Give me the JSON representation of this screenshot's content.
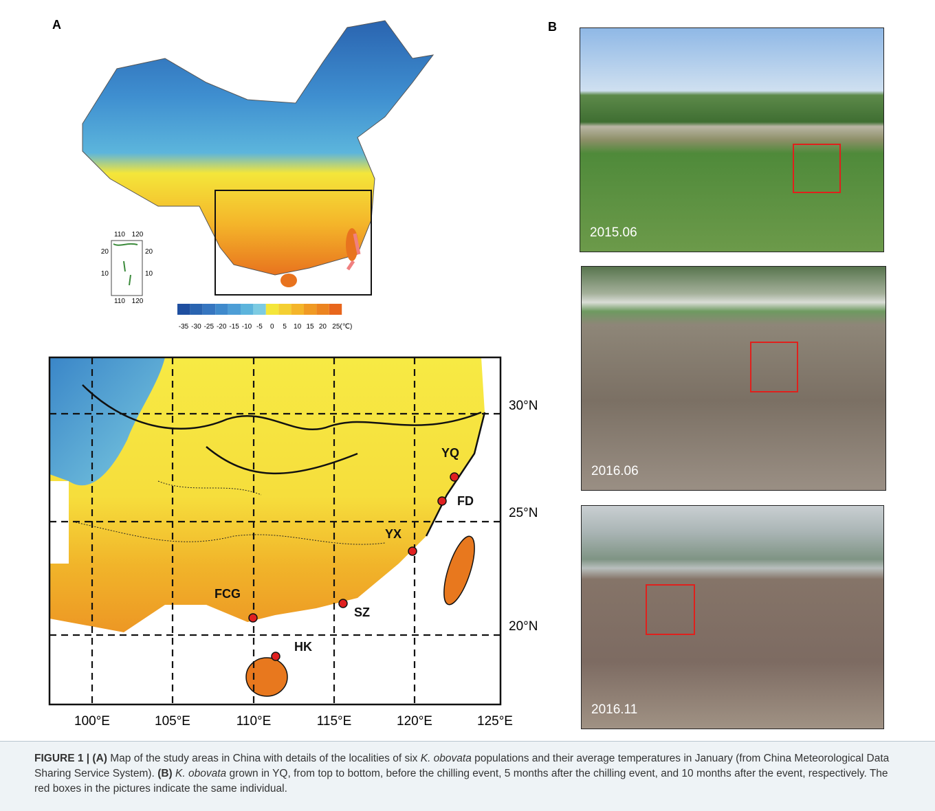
{
  "panel_a": {
    "label": "A",
    "inset": {
      "top_ticks": [
        "110",
        "120"
      ],
      "left_ticks": [
        "20",
        "10"
      ],
      "right_ticks": [
        "20",
        "10"
      ],
      "bottom_ticks": [
        "110",
        "120"
      ]
    },
    "colorbar_labels": [
      "-35",
      "-30",
      "-25",
      "-20",
      "-15",
      "-10",
      "-5",
      "0",
      "5",
      "10",
      "15",
      "20",
      "25(℃)"
    ],
    "map": {
      "lat_labels": [
        "30°N",
        "25°N",
        "20°N"
      ],
      "lon_labels": [
        "100°E",
        "105°E",
        "110°E",
        "115°E",
        "120°E",
        "125°E"
      ],
      "sites": [
        "YQ",
        "FD",
        "YX",
        "SZ",
        "FCG",
        "HK"
      ]
    }
  },
  "panel_b": {
    "label": "B",
    "photo_dates": [
      "2015.06",
      "2016.06",
      "2016.11"
    ]
  },
  "caption": {
    "segments": [
      "FIGURE 1 | (A)",
      "Map of the study areas in China with details of the localities of six",
      "K. obovata",
      "populations and their average temperatures in January (from China Meteorological Data Sharing Service System).",
      "(B)",
      "K. obovata",
      "grown in YQ, from top to bottom, before the chilling event, 5 months after the chilling event, and 10 months after the event, respectively. The red boxes in the pictures indicate the same individual."
    ]
  }
}
